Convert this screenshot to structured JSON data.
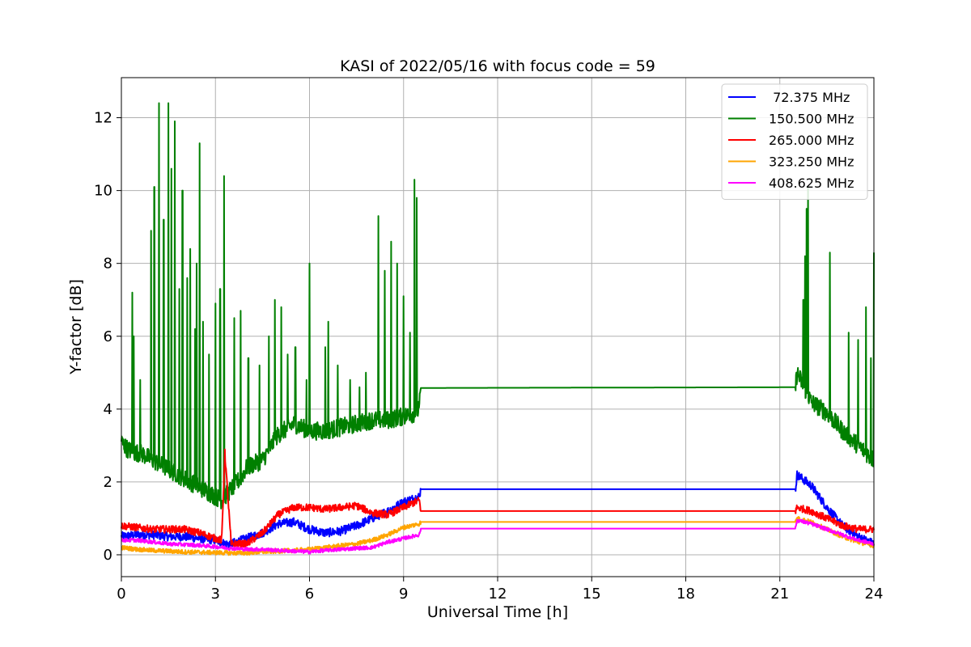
{
  "chart_data": {
    "type": "line",
    "title": "KASI of 2022/05/16 with focus code = 59",
    "xlabel": "Universal Time [h]",
    "ylabel": "Y-factor [dB]",
    "xlim": [
      0,
      24
    ],
    "ylim": [
      -0.6,
      13.1
    ],
    "xticks": [
      0,
      3,
      6,
      9,
      12,
      15,
      18,
      21,
      24
    ],
    "yticks": [
      0,
      2,
      4,
      6,
      8,
      10,
      12
    ],
    "grid": true,
    "legend_position": "top-right",
    "series": [
      {
        "name": " 72.375 MHz",
        "color": "#0000ff",
        "x": [
          0,
          0.5,
          1,
          1.5,
          2,
          2.5,
          3,
          3.3,
          3.5,
          4,
          4.5,
          5,
          5.5,
          6,
          6.5,
          7,
          7.5,
          8,
          8.5,
          9,
          9.5,
          9.55,
          21.5,
          21.55,
          22,
          22.5,
          23,
          23.5,
          24
        ],
        "y": [
          0.5,
          0.55,
          0.55,
          0.5,
          0.5,
          0.45,
          0.4,
          0.3,
          0.3,
          0.45,
          0.6,
          0.85,
          0.9,
          0.7,
          0.6,
          0.65,
          0.8,
          1.0,
          1.2,
          1.45,
          1.6,
          1.8,
          1.8,
          2.2,
          1.9,
          1.3,
          0.8,
          0.5,
          0.3
        ]
      },
      {
        "name": "150.500 MHz",
        "color": "#008000",
        "x": [
          0,
          0.2,
          0.4,
          0.6,
          0.8,
          1.0,
          1.2,
          1.4,
          1.6,
          1.8,
          2.0,
          2.2,
          2.4,
          2.6,
          2.8,
          3.0,
          3.2,
          3.5,
          3.8,
          4.0,
          4.5,
          5.0,
          5.5,
          6.0,
          6.5,
          7.0,
          7.5,
          8.0,
          8.5,
          9.0,
          9.4,
          9.5,
          9.55,
          21.5,
          21.55,
          22.0,
          22.5,
          23.0,
          23.5,
          24.0
        ],
        "y": [
          3.1,
          2.9,
          2.8,
          2.8,
          2.7,
          2.6,
          2.5,
          2.4,
          2.3,
          2.2,
          2.1,
          2.0,
          1.9,
          1.8,
          1.7,
          1.6,
          1.5,
          1.8,
          2.1,
          2.4,
          2.6,
          3.3,
          3.6,
          3.4,
          3.4,
          3.5,
          3.6,
          3.7,
          3.7,
          3.8,
          3.9,
          4.0,
          4.58,
          4.6,
          5.0,
          4.2,
          3.9,
          3.4,
          3.0,
          2.6
        ],
        "spikes": [
          [
            0.35,
            7.2
          ],
          [
            0.4,
            6.0
          ],
          [
            0.6,
            4.8
          ],
          [
            0.95,
            8.9
          ],
          [
            1.05,
            10.1
          ],
          [
            1.2,
            12.4
          ],
          [
            1.35,
            9.2
          ],
          [
            1.5,
            12.4
          ],
          [
            1.6,
            10.6
          ],
          [
            1.7,
            11.9
          ],
          [
            1.85,
            7.3
          ],
          [
            1.95,
            10.0
          ],
          [
            2.1,
            7.6
          ],
          [
            2.2,
            8.4
          ],
          [
            2.35,
            6.2
          ],
          [
            2.4,
            8.0
          ],
          [
            2.5,
            11.3
          ],
          [
            2.6,
            6.4
          ],
          [
            2.8,
            5.5
          ],
          [
            3.0,
            6.9
          ],
          [
            3.15,
            7.3
          ],
          [
            3.28,
            10.4
          ],
          [
            3.6,
            6.5
          ],
          [
            3.8,
            6.7
          ],
          [
            4.05,
            5.4
          ],
          [
            4.4,
            5.2
          ],
          [
            4.7,
            6.0
          ],
          [
            4.9,
            7.0
          ],
          [
            5.1,
            6.8
          ],
          [
            5.3,
            5.5
          ],
          [
            5.55,
            5.7
          ],
          [
            5.9,
            4.8
          ],
          [
            6.0,
            8.0
          ],
          [
            6.5,
            5.7
          ],
          [
            6.6,
            6.4
          ],
          [
            6.9,
            5.2
          ],
          [
            7.3,
            4.8
          ],
          [
            7.6,
            4.6
          ],
          [
            7.8,
            5.0
          ],
          [
            8.2,
            9.3
          ],
          [
            8.4,
            7.8
          ],
          [
            8.6,
            8.6
          ],
          [
            8.8,
            8.0
          ],
          [
            9.0,
            7.1
          ],
          [
            9.2,
            6.1
          ],
          [
            9.35,
            10.3
          ],
          [
            9.42,
            9.8
          ],
          [
            21.75,
            7.0
          ],
          [
            21.8,
            8.2
          ],
          [
            21.85,
            9.5
          ],
          [
            21.9,
            10.1
          ],
          [
            22.6,
            8.3
          ],
          [
            23.2,
            6.1
          ],
          [
            23.5,
            5.9
          ],
          [
            23.75,
            6.8
          ],
          [
            23.9,
            5.4
          ],
          [
            24.0,
            8.3
          ]
        ]
      },
      {
        "name": "265.000 MHz",
        "color": "#ff0000",
        "x": [
          0,
          0.5,
          1,
          1.5,
          2,
          2.5,
          3,
          3.2,
          3.3,
          3.5,
          4,
          4.5,
          5,
          5.5,
          6,
          6.5,
          7,
          7.5,
          8,
          8.5,
          9,
          9.5,
          9.55,
          21.5,
          21.55,
          22,
          22.5,
          23,
          23.5,
          24
        ],
        "y": [
          0.8,
          0.75,
          0.7,
          0.7,
          0.7,
          0.6,
          0.45,
          0.4,
          2.8,
          0.3,
          0.3,
          0.6,
          1.1,
          1.3,
          1.3,
          1.25,
          1.3,
          1.35,
          1.15,
          1.1,
          1.3,
          1.5,
          1.2,
          1.2,
          1.3,
          1.2,
          1.0,
          0.8,
          0.7,
          0.7
        ]
      },
      {
        "name": "323.250 MHz",
        "color": "#ffa500",
        "x": [
          0,
          0.5,
          1,
          1.5,
          2,
          2.5,
          3,
          3.5,
          4,
          4.5,
          5,
          5.5,
          6,
          6.5,
          7,
          7.5,
          8,
          8.5,
          9,
          9.5,
          9.55,
          21.5,
          21.55,
          22,
          22.5,
          23,
          23.5,
          24
        ],
        "y": [
          0.2,
          0.15,
          0.12,
          0.1,
          0.08,
          0.07,
          0.06,
          0.05,
          0.05,
          0.08,
          0.1,
          0.12,
          0.15,
          0.2,
          0.25,
          0.3,
          0.4,
          0.55,
          0.75,
          0.85,
          0.9,
          0.9,
          1.0,
          0.9,
          0.7,
          0.5,
          0.35,
          0.25
        ]
      },
      {
        "name": "408.625 MHz",
        "color": "#ff00ff",
        "x": [
          0,
          0.5,
          1,
          1.5,
          2,
          2.5,
          3,
          3.5,
          4,
          4.5,
          5,
          5.5,
          6,
          6.5,
          7,
          7.5,
          8,
          8.5,
          9,
          9.5,
          9.55,
          21.5,
          21.55,
          22,
          22.5,
          23,
          23.5,
          24
        ],
        "y": [
          0.4,
          0.4,
          0.35,
          0.3,
          0.28,
          0.26,
          0.22,
          0.18,
          0.15,
          0.15,
          0.12,
          0.1,
          0.08,
          0.12,
          0.15,
          0.18,
          0.2,
          0.35,
          0.45,
          0.55,
          0.72,
          0.72,
          0.95,
          0.85,
          0.7,
          0.55,
          0.4,
          0.3
        ]
      }
    ]
  }
}
